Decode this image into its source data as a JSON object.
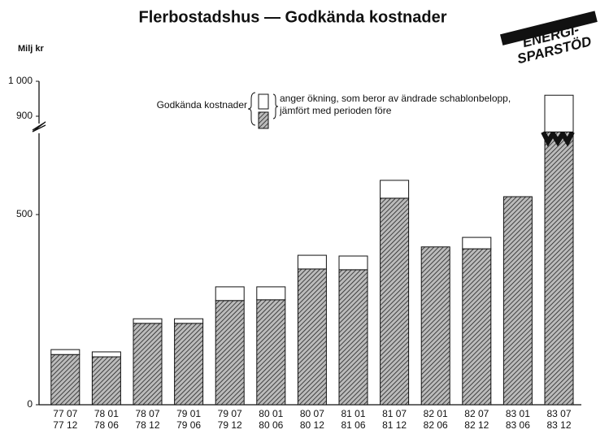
{
  "chart_data": {
    "type": "stacked_bar",
    "title": "Flerbostadshus — Godkända kostnader",
    "y_label": "Milj kr",
    "stamp": [
      "ENERGI-",
      "SPARSTÖD"
    ],
    "categories": [
      [
        "77 07",
        "77 12"
      ],
      [
        "78 01",
        "78 06"
      ],
      [
        "78 07",
        "78 12"
      ],
      [
        "79 01",
        "79 06"
      ],
      [
        "79 07",
        "79 12"
      ],
      [
        "80 01",
        "80 06"
      ],
      [
        "80 07",
        "80 12"
      ],
      [
        "81 01",
        "81 06"
      ],
      [
        "81 07",
        "81 12"
      ],
      [
        "82 01",
        "82 06"
      ],
      [
        "82 07",
        "82 12"
      ],
      [
        "83 01",
        "83 06"
      ],
      [
        "83 07",
        "83 12"
      ]
    ],
    "series": [
      {
        "name": "Godkända kostnader",
        "color": "#555555",
        "values": [
          132,
          126,
          214,
          214,
          274,
          276,
          357,
          355,
          543,
          415,
          410,
          547,
          855
        ]
      },
      {
        "name": "anger ökning, som beror av ändrade schablonbelopp, jämfört med perioden före",
        "color": "#ffffff",
        "values": [
          13,
          13,
          12,
          12,
          36,
          34,
          36,
          36,
          47,
          0,
          30,
          0,
          105
        ]
      }
    ],
    "ylim": [
      0,
      1000
    ],
    "yticks": [
      0,
      500,
      900,
      {
        "value": 1000,
        "label": "1 000"
      }
    ],
    "y_break": [
      700,
      850
    ]
  }
}
